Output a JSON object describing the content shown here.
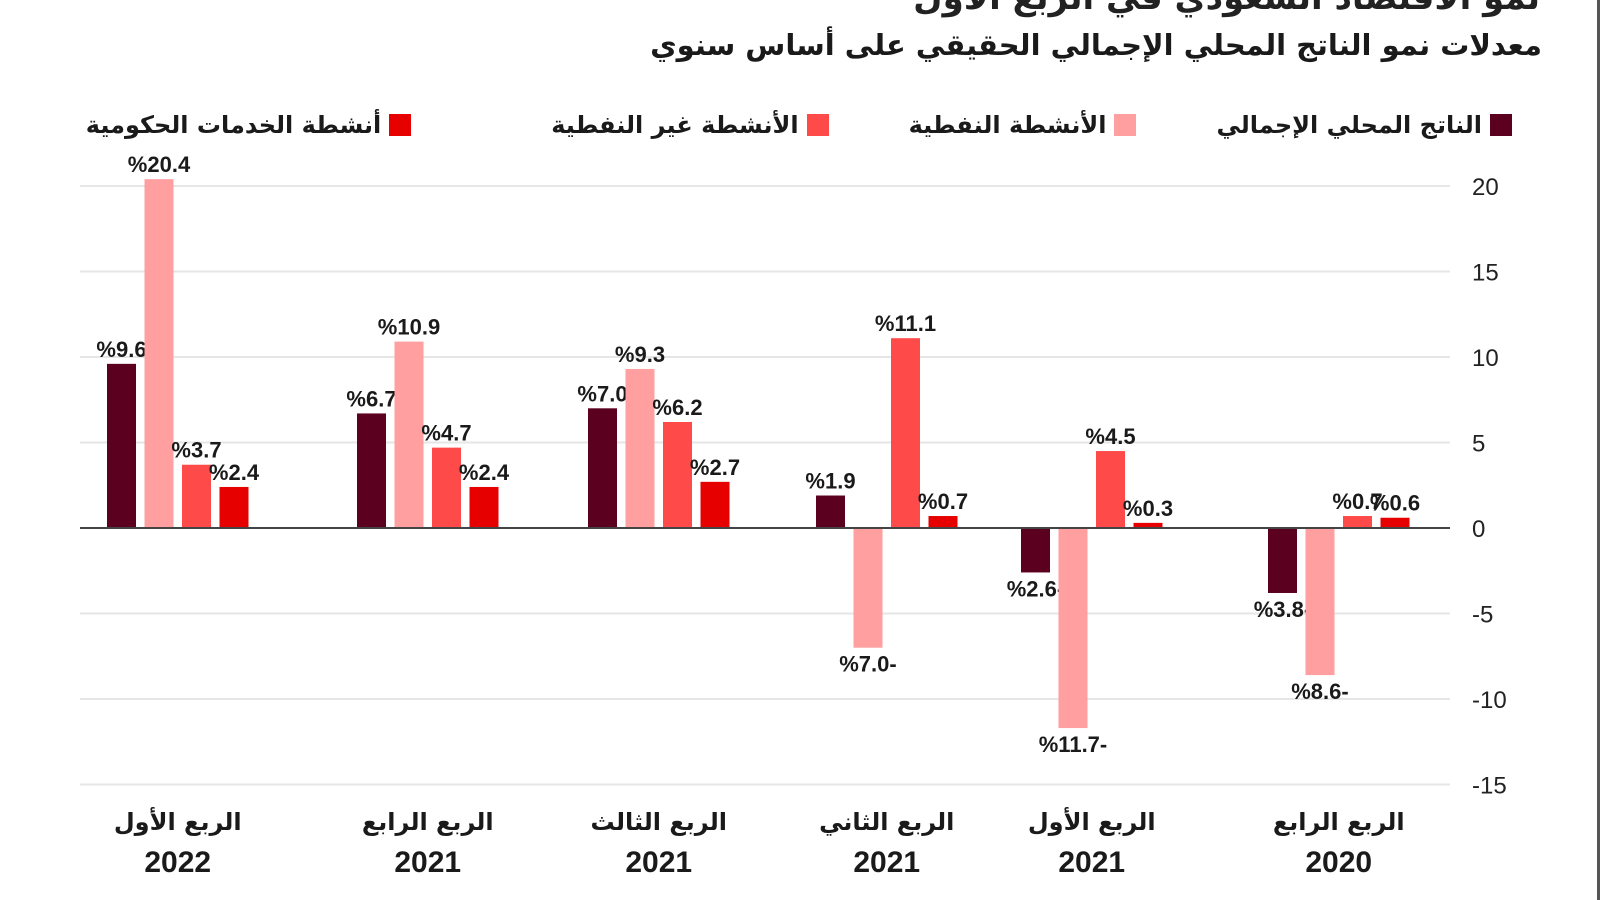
{
  "header": {
    "title_partial": "نمو الاقتصاد السعودي في الربع الأول",
    "subtitle": "معدلات نمو الناتج المحلي الإجمالي الحقيقي على أساس سنوي"
  },
  "colors": {
    "gdp": "#5c0020",
    "oil": "#ff9f9f",
    "non_oil": "#ff4a4a",
    "government": "#e60000",
    "grid": "#e6e6e6",
    "axis": "#444444"
  },
  "legend": [
    {
      "label": "الناتج المحلي الإجمالي",
      "color": "#5c0020"
    },
    {
      "label": "الأنشطة النفطية",
      "color": "#ff9f9f"
    },
    {
      "label": "الأنشطة غير النفطية",
      "color": "#ff4a4a"
    },
    {
      "label": "أنشطة الخدمات الحكومية",
      "color": "#e60000"
    }
  ],
  "chart_data": {
    "type": "bar",
    "title": "معدلات نمو الناتج المحلي الإجمالي الحقيقي على أساس سنوي",
    "xlabel": "",
    "ylabel": "",
    "ylim": [
      -15,
      20
    ],
    "yticks": [
      20,
      15,
      10,
      5,
      0,
      -5,
      -10,
      -15
    ],
    "grid": true,
    "legend_position": "top",
    "categories": [
      {
        "quarter": "الربع الأول",
        "year": "2022"
      },
      {
        "quarter": "الربع الرابع",
        "year": "2021"
      },
      {
        "quarter": "الربع الثالث",
        "year": "2021"
      },
      {
        "quarter": "الربع الثاني",
        "year": "2021"
      },
      {
        "quarter": "الربع الأول",
        "year": "2021"
      },
      {
        "quarter": "الربع الرابع",
        "year": "2020"
      }
    ],
    "series": [
      {
        "name": "الناتج المحلي الإجمالي",
        "key": "gdp",
        "values": [
          9.6,
          6.7,
          7.0,
          1.9,
          -2.6,
          -3.8
        ],
        "labels": [
          "%9.6",
          "%6.7",
          "%7.0",
          "%1.9",
          "%2.6-",
          "%3.8-"
        ]
      },
      {
        "name": "الأنشطة النفطية",
        "key": "oil",
        "values": [
          20.4,
          10.9,
          9.3,
          -7.0,
          -11.7,
          -8.6
        ],
        "labels": [
          "%20.4",
          "%10.9",
          "%9.3",
          "%7.0-",
          "%11.7-",
          "%8.6-"
        ]
      },
      {
        "name": "الأنشطة غير النفطية",
        "key": "non_oil",
        "values": [
          3.7,
          4.7,
          6.2,
          11.1,
          4.5,
          0.7
        ],
        "labels": [
          "%3.7",
          "%4.7",
          "%6.2",
          "%11.1",
          "%4.5",
          "%0.7"
        ]
      },
      {
        "name": "أنشطة الخدمات الحكومية",
        "key": "government",
        "values": [
          2.4,
          2.4,
          2.7,
          0.7,
          0.3,
          0.6
        ],
        "labels": [
          "%2.4",
          "%2.4",
          "%2.7",
          "%0.7",
          "%0.3",
          "%0.6"
        ]
      }
    ]
  }
}
